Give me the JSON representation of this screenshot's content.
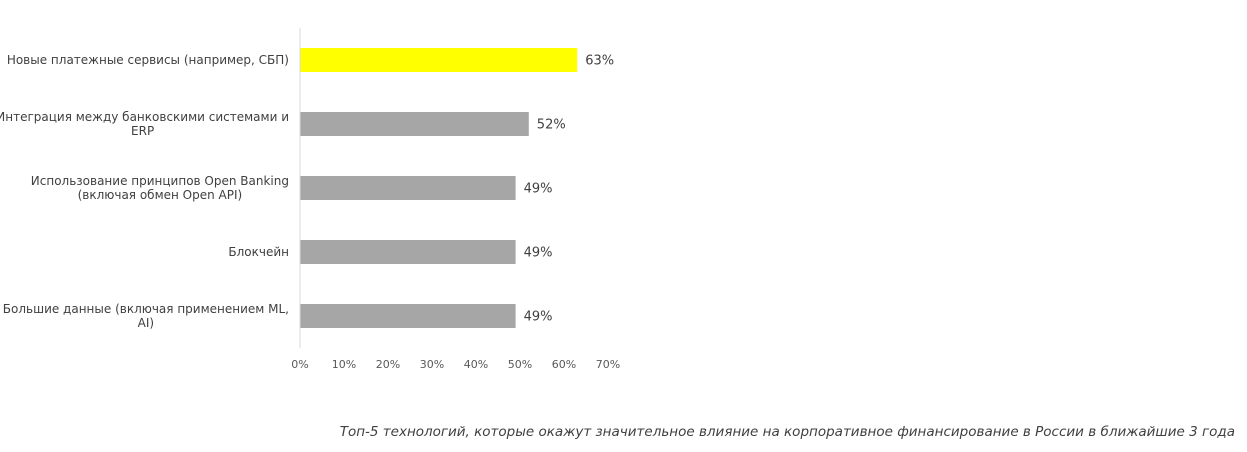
{
  "chart_data": {
    "type": "bar",
    "orientation": "horizontal",
    "categories": [
      [
        "Новые платежные сервисы (например, СБП)"
      ],
      [
        "Интеграция между банковскими системами и",
        "ERP"
      ],
      [
        "Использование принципов Open Banking",
        "(включая обмен Open API)"
      ],
      [
        "Блокчейн"
      ],
      [
        "Большие данные (включая применением ML,",
        "AI)"
      ]
    ],
    "values": [
      63,
      52,
      49,
      49,
      49
    ],
    "data_labels": [
      "63%",
      "52%",
      "49%",
      "49%",
      "49%"
    ],
    "xlim": [
      0,
      70
    ],
    "xticks": [
      "0%",
      "10%",
      "20%",
      "30%",
      "40%",
      "50%",
      "60%",
      "70%"
    ],
    "bar_colors": [
      "#ffff00",
      "#a6a6a6",
      "#a6a6a6",
      "#a6a6a6",
      "#a6a6a6"
    ],
    "grid": false,
    "legend": "none"
  },
  "caption": "Топ-5 технологий, которые окажут значительное влияние на корпоративное финансирование в России в ближайшие 3 года"
}
